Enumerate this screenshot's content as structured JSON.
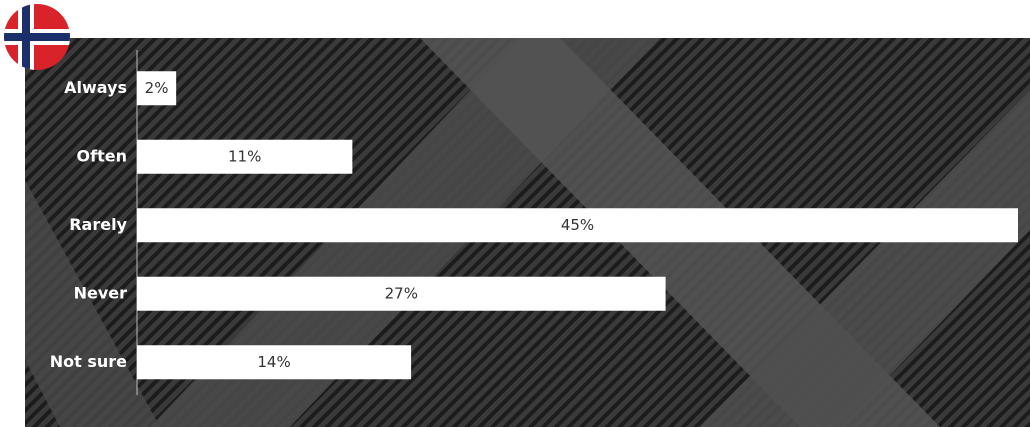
{
  "chart_data": {
    "type": "bar",
    "orientation": "horizontal",
    "categories": [
      "Always",
      "Often",
      "Rarely",
      "Never",
      "Not sure"
    ],
    "values": [
      2,
      11,
      45,
      27,
      14
    ],
    "value_labels": [
      "2%",
      "11%",
      "45%",
      "27%",
      "14%"
    ],
    "color": "#ffffff"
  }
}
